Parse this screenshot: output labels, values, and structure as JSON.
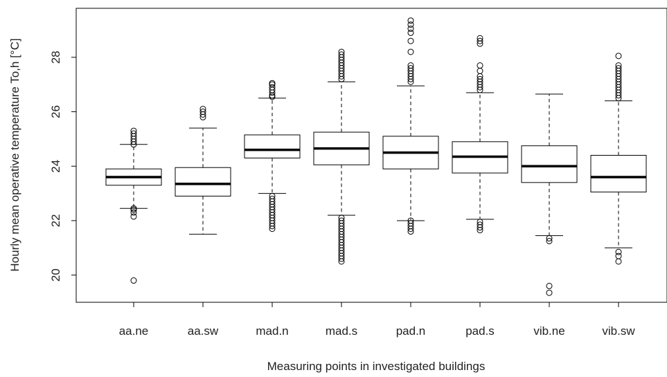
{
  "chart_data": {
    "type": "boxplot",
    "title": "",
    "xlabel": "Measuring points in investigated buildings",
    "ylabel": "Hourly mean operative temperature To,h [°C]",
    "ylim": [
      19.0,
      29.8
    ],
    "yticks": [
      20,
      22,
      24,
      26,
      28
    ],
    "grid": false,
    "categories": [
      "aa.ne",
      "aa.sw",
      "mad.n",
      "mad.s",
      "pad.n",
      "pad.s",
      "vib.ne",
      "vib.sw"
    ],
    "boxes": [
      {
        "label": "aa.ne",
        "q1": 23.3,
        "median": 23.6,
        "q3": 23.9,
        "whisker_low": 22.45,
        "whisker_high": 24.8,
        "outliers": [
          19.8,
          22.15,
          22.3,
          22.4,
          22.45,
          24.8,
          24.9,
          25.0,
          25.1,
          25.2,
          25.3
        ]
      },
      {
        "label": "aa.sw",
        "q1": 22.9,
        "median": 23.35,
        "q3": 23.95,
        "whisker_low": 21.5,
        "whisker_high": 25.4,
        "outliers": [
          25.8,
          25.9,
          26.0,
          26.1
        ]
      },
      {
        "label": "mad.n",
        "q1": 24.3,
        "median": 24.6,
        "q3": 25.15,
        "whisker_low": 23.0,
        "whisker_high": 26.5,
        "outliers": [
          21.7,
          21.8,
          21.9,
          22.0,
          22.1,
          22.2,
          22.3,
          22.4,
          22.5,
          22.6,
          22.7,
          22.8,
          22.9,
          26.55,
          26.6,
          26.7,
          26.8,
          26.9,
          27.0,
          27.05
        ]
      },
      {
        "label": "mad.s",
        "q1": 24.05,
        "median": 24.65,
        "q3": 25.25,
        "whisker_low": 22.2,
        "whisker_high": 27.1,
        "outliers": [
          20.5,
          20.6,
          20.7,
          20.8,
          20.9,
          21.0,
          21.1,
          21.2,
          21.3,
          21.4,
          21.5,
          21.6,
          21.7,
          21.8,
          21.9,
          22.0,
          22.1,
          27.2,
          27.3,
          27.4,
          27.5,
          27.6,
          27.7,
          27.8,
          27.9,
          28.0,
          28.1,
          28.2
        ]
      },
      {
        "label": "pad.n",
        "q1": 23.9,
        "median": 24.5,
        "q3": 25.1,
        "whisker_low": 22.0,
        "whisker_high": 26.95,
        "outliers": [
          21.6,
          21.7,
          21.8,
          21.9,
          22.0,
          27.1,
          27.2,
          27.3,
          27.4,
          27.5,
          27.6,
          27.7,
          28.2,
          28.6,
          28.9,
          29.05,
          29.2,
          29.35
        ]
      },
      {
        "label": "pad.s",
        "q1": 23.75,
        "median": 24.35,
        "q3": 24.9,
        "whisker_low": 22.05,
        "whisker_high": 26.7,
        "outliers": [
          21.65,
          21.75,
          21.85,
          21.95,
          26.8,
          26.9,
          27.0,
          27.1,
          27.2,
          27.3,
          27.5,
          27.7,
          28.5,
          28.6,
          28.7
        ]
      },
      {
        "label": "vib.ne",
        "q1": 23.4,
        "median": 24.0,
        "q3": 24.75,
        "whisker_low": 21.45,
        "whisker_high": 26.65,
        "outliers": [
          19.35,
          19.6,
          21.25,
          21.35
        ]
      },
      {
        "label": "vib.sw",
        "q1": 23.05,
        "median": 23.6,
        "q3": 24.4,
        "whisker_low": 21.0,
        "whisker_high": 26.4,
        "outliers": [
          20.5,
          20.7,
          20.85,
          26.5,
          26.6,
          26.7,
          26.8,
          26.9,
          27.0,
          27.1,
          27.2,
          27.3,
          27.4,
          27.5,
          27.6,
          27.7,
          28.05
        ]
      }
    ]
  }
}
